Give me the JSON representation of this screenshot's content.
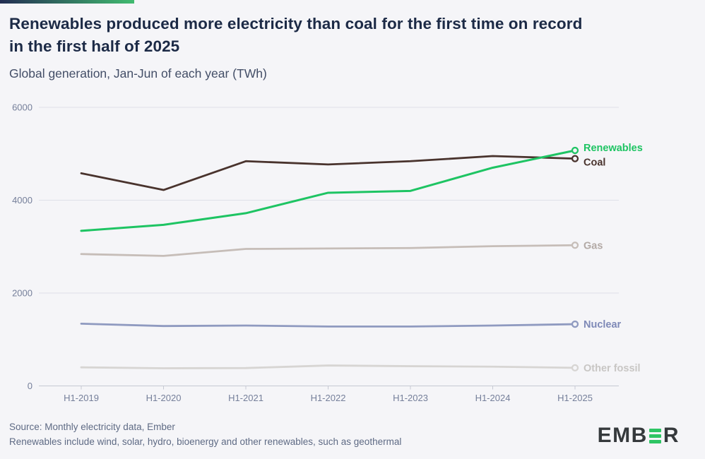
{
  "accent_bar": {
    "gradient_from": "#232d52",
    "gradient_to": "#41bb70"
  },
  "header": {
    "title_line1": "Renewables produced more electricity than coal for the first time on record",
    "title_line2": "in the first half of 2025",
    "subtitle": "Global generation, Jan-Jun of each year (TWh)"
  },
  "chart_data": {
    "type": "line",
    "title": "Renewables produced more electricity than coal for the first time on record in the first half of 2025",
    "subtitle": "Global generation, Jan-Jun of each year (TWh)",
    "x": [
      "H1-2019",
      "H1-2020",
      "H1-2021",
      "H1-2022",
      "H1-2023",
      "H1-2024",
      "H1-2025"
    ],
    "series": [
      {
        "name": "Renewables",
        "color": "#1ec463",
        "label_color": "#1ec463",
        "width": 3,
        "label_dy": -4,
        "values": [
          3340,
          3470,
          3720,
          4160,
          4200,
          4700,
          5072
        ]
      },
      {
        "name": "Coal",
        "color": "#49332d",
        "label_color": "#49332d",
        "width": 2.8,
        "label_dy": 5,
        "values": [
          4580,
          4220,
          4840,
          4770,
          4840,
          4950,
          4896
        ]
      },
      {
        "name": "Gas",
        "color": "#c6bdb8",
        "label_color": "#b3aaa6",
        "width": 2.8,
        "label_dy": 0,
        "values": [
          2840,
          2800,
          2950,
          2960,
          2970,
          3010,
          3030
        ]
      },
      {
        "name": "Nuclear",
        "color": "#8f9ac0",
        "label_color": "#7e89b7",
        "width": 2.8,
        "label_dy": 0,
        "values": [
          1340,
          1290,
          1300,
          1280,
          1280,
          1300,
          1330
        ]
      },
      {
        "name": "Other fossil",
        "color": "#d7d5d3",
        "label_color": "#c8c6c4",
        "width": 2.8,
        "label_dy": 0,
        "values": [
          400,
          380,
          385,
          440,
          425,
          415,
          390
        ]
      }
    ],
    "ylim": [
      0,
      6000
    ],
    "yticks": [
      0,
      2000,
      4000,
      6000
    ],
    "grid": "horizontal",
    "legend_position": "right-of-line-ends"
  },
  "footer": {
    "source": "Source: Monthly electricity data, Ember",
    "note": "Renewables include wind, solar, hydro, bioenergy and other renewables, such as geothermal"
  },
  "logo": {
    "prefix": "EMB",
    "suffix": "R",
    "green": "#2ec564"
  }
}
